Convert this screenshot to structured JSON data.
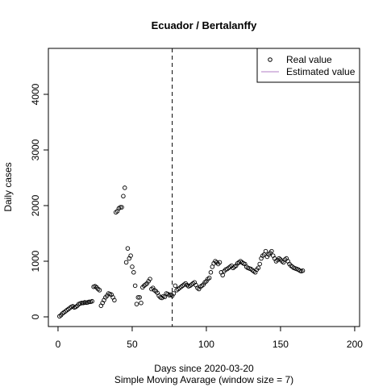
{
  "chart_data": {
    "type": "scatter",
    "title": "Ecuador / Bertalanffy",
    "x_label": "Days since 2020-03-20",
    "subtitle": "Simple Moving Avarage (window size = 7)",
    "y_label": "Daily cases",
    "x": [
      1,
      2,
      3,
      4,
      5,
      6,
      7,
      8,
      9,
      10,
      11,
      12,
      13,
      14,
      15,
      16,
      17,
      18,
      19,
      20,
      21,
      22,
      23,
      24,
      25,
      26,
      27,
      28,
      29,
      30,
      31,
      32,
      33,
      34,
      35,
      36,
      37,
      38,
      39,
      40,
      41,
      42,
      43,
      44,
      45,
      46,
      47,
      48,
      49,
      50,
      51,
      52,
      53,
      54,
      55,
      56,
      57,
      58,
      59,
      60,
      61,
      62,
      63,
      64,
      65,
      66,
      67,
      68,
      69,
      70,
      71,
      72,
      73,
      74,
      75,
      76,
      77,
      78,
      79,
      80,
      81,
      82,
      83,
      84,
      85,
      86,
      87,
      88,
      89,
      90,
      91,
      92,
      93,
      94,
      95,
      96,
      97,
      98,
      99,
      100,
      101,
      102,
      103,
      104,
      105,
      106,
      107,
      108,
      109,
      110,
      111,
      112,
      113,
      114,
      115,
      116,
      117,
      118,
      119,
      120,
      121,
      122,
      123,
      124,
      125,
      126,
      127,
      128,
      129,
      130,
      131,
      132,
      133,
      134,
      135,
      136,
      137,
      138,
      139,
      140,
      141,
      142,
      143,
      144,
      145,
      146,
      147,
      148,
      149,
      150,
      151,
      152,
      153,
      154,
      155,
      156,
      157,
      158,
      159,
      160,
      161,
      162,
      163,
      164,
      165
    ],
    "series": [
      {
        "name": "Real value",
        "color": "#000000",
        "values": [
          10,
          30,
          60,
          80,
          100,
          120,
          140,
          160,
          180,
          190,
          170,
          180,
          200,
          230,
          240,
          250,
          250,
          260,
          255,
          260,
          270,
          270,
          280,
          540,
          550,
          530,
          500,
          480,
          200,
          250,
          300,
          350,
          380,
          420,
          410,
          400,
          350,
          300,
          1880,
          1900,
          1950,
          1970,
          1970,
          2170,
          2320,
          980,
          1230,
          1050,
          1100,
          900,
          800,
          560,
          230,
          350,
          350,
          250,
          530,
          560,
          580,
          600,
          640,
          680,
          500,
          520,
          480,
          460,
          430,
          380,
          350,
          340,
          370,
          360,
          420,
          410,
          390,
          400,
          380,
          420,
          560,
          480,
          500,
          520,
          540,
          560,
          580,
          600,
          570,
          550,
          560,
          580,
          600,
          620,
          570,
          520,
          500,
          540,
          560,
          580,
          620,
          640,
          680,
          700,
          800,
          900,
          960,
          1000,
          980,
          950,
          980,
          800,
          750,
          820,
          850,
          860,
          880,
          900,
          920,
          880,
          900,
          920,
          960,
          980,
          1000,
          980,
          960,
          950,
          900,
          880,
          870,
          860,
          840,
          820,
          800,
          850,
          880,
          950,
          1050,
          1100,
          1120,
          1180,
          1080,
          1120,
          1150,
          1180,
          1100,
          1050,
          1000,
          1020,
          1050,
          1030,
          1000,
          980,
          1030,
          1050,
          1000,
          950,
          920,
          900,
          880,
          870,
          860,
          850,
          830,
          820,
          830
        ]
      },
      {
        "name": "Estimated value",
        "color": "#b07cc6",
        "values": []
      }
    ],
    "vline": 77,
    "xlim": [
      -6.5,
      203.3
    ],
    "xticks": [
      0,
      50,
      100,
      150,
      200
    ],
    "ylim": [
      -174,
      4826
    ],
    "yticks": [
      0,
      1000,
      2000,
      3000,
      4000
    ],
    "legend": "top-right"
  }
}
